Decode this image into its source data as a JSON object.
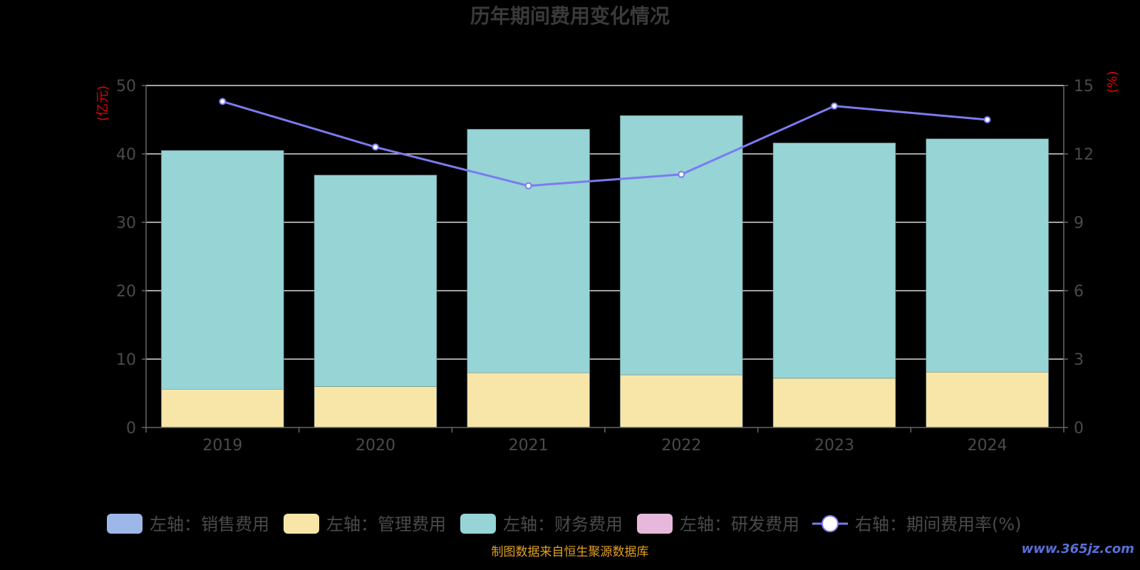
{
  "chart_data": {
    "type": "bar",
    "title": "历年期间费用变化情况",
    "categories": [
      "2019",
      "2020",
      "2021",
      "2022",
      "2023",
      "2024"
    ],
    "left_axis": {
      "unit": "(亿元)",
      "ylim": [
        0,
        50
      ],
      "ticks": [
        "0",
        "10",
        "20",
        "30",
        "40",
        "50"
      ]
    },
    "right_axis": {
      "unit": "(%)",
      "ylim": [
        0,
        15
      ],
      "ticks": [
        "0",
        "3",
        "6",
        "9",
        "12",
        "15"
      ]
    },
    "stacked": true,
    "grid": true,
    "legend_position": "bottom",
    "series": [
      {
        "name": "左轴：销售费用",
        "axis": "left",
        "kind": "bar",
        "color": "#9db8e8",
        "values": [
          0,
          0,
          0,
          0,
          0,
          0
        ]
      },
      {
        "name": "左轴：管理费用",
        "axis": "left",
        "kind": "bar",
        "color": "#f8e6a8",
        "values": [
          5.6,
          6.0,
          8.0,
          7.7,
          7.2,
          8.1
        ]
      },
      {
        "name": "左轴：财务费用",
        "axis": "left",
        "kind": "bar",
        "color": "#96d4d6",
        "values": [
          34.9,
          30.9,
          35.6,
          37.9,
          34.4,
          34.1
        ]
      },
      {
        "name": "左轴：研发费用",
        "axis": "left",
        "kind": "bar",
        "color": "#e8b8dc",
        "values": [
          0,
          0,
          0,
          0,
          0,
          0
        ]
      },
      {
        "name": "右轴：期间费用率(%)",
        "axis": "right",
        "kind": "line",
        "color": "#7b7bf0",
        "values": [
          14.3,
          12.3,
          10.6,
          11.1,
          14.1,
          13.5
        ]
      }
    ]
  },
  "footer": {
    "source": "制图数据来自恒生聚源数据库",
    "watermark": "www.365jz.com"
  }
}
